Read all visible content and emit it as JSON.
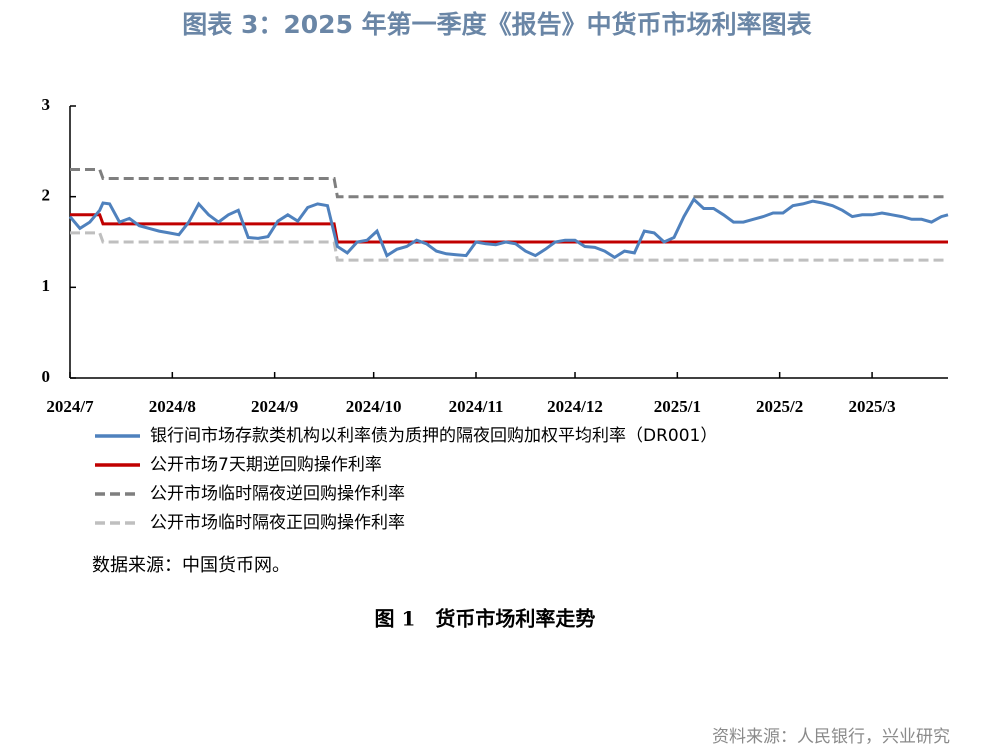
{
  "chart_data": {
    "type": "line",
    "title": "图表 3：2025 年第一季度《报告》中货币市场利率图表",
    "source_note": "数据来源：中国货币网。",
    "caption": "图 1　货币市场利率走势",
    "footer": "资料来源：人民银行，兴业研究",
    "x": [
      0,
      3,
      6,
      9,
      10,
      12,
      15,
      18,
      21,
      24,
      27,
      30,
      33,
      36,
      39,
      42,
      45,
      48,
      51,
      54,
      57,
      60,
      63,
      66,
      69,
      72,
      75,
      78,
      80,
      81,
      84,
      87,
      90,
      93,
      96,
      99,
      102,
      105,
      108,
      111,
      114,
      117,
      120,
      123,
      126,
      129,
      132,
      135,
      138,
      141,
      144,
      147,
      150,
      153,
      156,
      159,
      162,
      165,
      168,
      171,
      174,
      177,
      180,
      183,
      186,
      189,
      192,
      195,
      198,
      201,
      204,
      207,
      210,
      213,
      216,
      219,
      222,
      225,
      228,
      231,
      234,
      237,
      240,
      243,
      246,
      249,
      252,
      255,
      258,
      261,
      264,
      266
    ],
    "xlim": [
      0,
      266
    ],
    "xticks": [
      {
        "value": 0,
        "label": "2024/7"
      },
      {
        "value": 31,
        "label": "2024/8"
      },
      {
        "value": 62,
        "label": "2024/9"
      },
      {
        "value": 92,
        "label": "2024/10"
      },
      {
        "value": 123,
        "label": "2024/11"
      },
      {
        "value": 153,
        "label": "2024/12"
      },
      {
        "value": 184,
        "label": "2025/1"
      },
      {
        "value": 215,
        "label": "2025/2"
      },
      {
        "value": 243,
        "label": "2025/3"
      }
    ],
    "ylim": [
      0,
      3
    ],
    "yticks": [
      0,
      1,
      2,
      3
    ],
    "series": [
      {
        "name": "银行间市场存款类机构以利率债为质押的隔夜回购加权平均利率（DR001）",
        "color": "#4f81bd",
        "dashed": false,
        "values": [
          1.78,
          1.65,
          1.72,
          1.85,
          1.93,
          1.92,
          1.72,
          1.76,
          1.68,
          1.65,
          1.62,
          1.6,
          1.58,
          1.72,
          1.92,
          1.8,
          1.72,
          1.8,
          1.85,
          1.55,
          1.54,
          1.56,
          1.73,
          1.8,
          1.73,
          1.88,
          1.92,
          1.9,
          1.6,
          1.45,
          1.38,
          1.5,
          1.52,
          1.62,
          1.35,
          1.42,
          1.45,
          1.52,
          1.48,
          1.4,
          1.37,
          1.36,
          1.35,
          1.5,
          1.48,
          1.47,
          1.5,
          1.48,
          1.4,
          1.35,
          1.42,
          1.5,
          1.52,
          1.52,
          1.45,
          1.44,
          1.4,
          1.33,
          1.4,
          1.38,
          1.62,
          1.6,
          1.5,
          1.55,
          1.78,
          1.97,
          1.87,
          1.87,
          1.8,
          1.72,
          1.72,
          1.75,
          1.78,
          1.82,
          1.82,
          1.9,
          1.92,
          1.95,
          1.93,
          1.9,
          1.85,
          1.78,
          1.8,
          1.8,
          1.82,
          1.8,
          1.78,
          1.75,
          1.75,
          1.72,
          1.78,
          1.8
        ]
      },
      {
        "name": "公开市场7天期逆回购操作利率",
        "color": "#c00000",
        "dashed": false,
        "values": [
          1.8,
          1.8,
          1.8,
          1.8,
          1.7,
          1.7,
          1.7,
          1.7,
          1.7,
          1.7,
          1.7,
          1.7,
          1.7,
          1.7,
          1.7,
          1.7,
          1.7,
          1.7,
          1.7,
          1.7,
          1.7,
          1.7,
          1.7,
          1.7,
          1.7,
          1.7,
          1.7,
          1.7,
          1.7,
          1.5,
          1.5,
          1.5,
          1.5,
          1.5,
          1.5,
          1.5,
          1.5,
          1.5,
          1.5,
          1.5,
          1.5,
          1.5,
          1.5,
          1.5,
          1.5,
          1.5,
          1.5,
          1.5,
          1.5,
          1.5,
          1.5,
          1.5,
          1.5,
          1.5,
          1.5,
          1.5,
          1.5,
          1.5,
          1.5,
          1.5,
          1.5,
          1.5,
          1.5,
          1.5,
          1.5,
          1.5,
          1.5,
          1.5,
          1.5,
          1.5,
          1.5,
          1.5,
          1.5,
          1.5,
          1.5,
          1.5,
          1.5,
          1.5,
          1.5,
          1.5,
          1.5,
          1.5,
          1.5,
          1.5,
          1.5,
          1.5,
          1.5,
          1.5,
          1.5,
          1.5,
          1.5,
          1.5
        ]
      },
      {
        "name": "公开市场临时隔夜逆回购操作利率",
        "color": "#7f7f7f",
        "dashed": true,
        "values": [
          2.3,
          2.3,
          2.3,
          2.3,
          2.2,
          2.2,
          2.2,
          2.2,
          2.2,
          2.2,
          2.2,
          2.2,
          2.2,
          2.2,
          2.2,
          2.2,
          2.2,
          2.2,
          2.2,
          2.2,
          2.2,
          2.2,
          2.2,
          2.2,
          2.2,
          2.2,
          2.2,
          2.2,
          2.2,
          2.0,
          2.0,
          2.0,
          2.0,
          2.0,
          2.0,
          2.0,
          2.0,
          2.0,
          2.0,
          2.0,
          2.0,
          2.0,
          2.0,
          2.0,
          2.0,
          2.0,
          2.0,
          2.0,
          2.0,
          2.0,
          2.0,
          2.0,
          2.0,
          2.0,
          2.0,
          2.0,
          2.0,
          2.0,
          2.0,
          2.0,
          2.0,
          2.0,
          2.0,
          2.0,
          2.0,
          2.0,
          2.0,
          2.0,
          2.0,
          2.0,
          2.0,
          2.0,
          2.0,
          2.0,
          2.0,
          2.0,
          2.0,
          2.0,
          2.0,
          2.0,
          2.0,
          2.0,
          2.0,
          2.0,
          2.0,
          2.0,
          2.0,
          2.0,
          2.0,
          2.0,
          2.0,
          2.0
        ]
      },
      {
        "name": "公开市场临时隔夜正回购操作利率",
        "color": "#bfbfbf",
        "dashed": true,
        "values": [
          1.6,
          1.6,
          1.6,
          1.6,
          1.5,
          1.5,
          1.5,
          1.5,
          1.5,
          1.5,
          1.5,
          1.5,
          1.5,
          1.5,
          1.5,
          1.5,
          1.5,
          1.5,
          1.5,
          1.5,
          1.5,
          1.5,
          1.5,
          1.5,
          1.5,
          1.5,
          1.5,
          1.5,
          1.5,
          1.3,
          1.3,
          1.3,
          1.3,
          1.3,
          1.3,
          1.3,
          1.3,
          1.3,
          1.3,
          1.3,
          1.3,
          1.3,
          1.3,
          1.3,
          1.3,
          1.3,
          1.3,
          1.3,
          1.3,
          1.3,
          1.3,
          1.3,
          1.3,
          1.3,
          1.3,
          1.3,
          1.3,
          1.3,
          1.3,
          1.3,
          1.3,
          1.3,
          1.3,
          1.3,
          1.3,
          1.3,
          1.3,
          1.3,
          1.3,
          1.3,
          1.3,
          1.3,
          1.3,
          1.3,
          1.3,
          1.3,
          1.3,
          1.3,
          1.3,
          1.3,
          1.3,
          1.3,
          1.3,
          1.3,
          1.3,
          1.3,
          1.3,
          1.3,
          1.3,
          1.3,
          1.3,
          1.3
        ]
      }
    ]
  }
}
